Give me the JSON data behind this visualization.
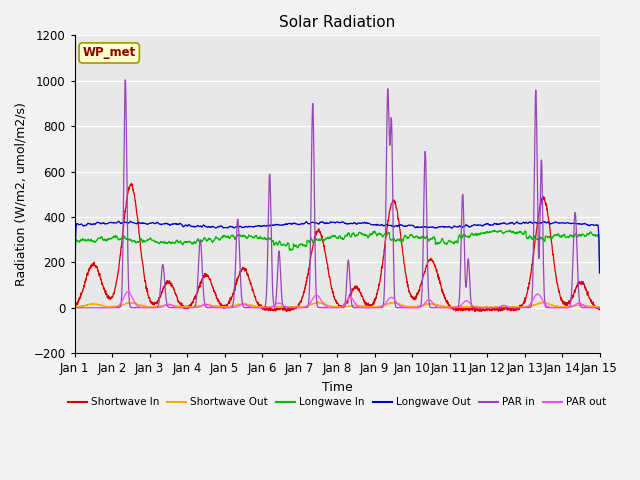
{
  "title": "Solar Radiation",
  "xlabel": "Time",
  "ylabel": "Radiation (W/m2, umol/m2/s)",
  "ylim": [
    -200,
    1200
  ],
  "yticks": [
    -200,
    0,
    200,
    400,
    600,
    800,
    1000,
    1200
  ],
  "xtick_labels": [
    "Jan 1",
    "Jan 2",
    "Jan 3",
    "Jan 4",
    "Jan 5",
    "Jan 6",
    "Jan 7",
    "Jan 8",
    "Jan 9",
    "Jan 10",
    "Jan 11",
    "Jan 12",
    "Jan 13",
    "Jan 14",
    "Jan 15"
  ],
  "colors": {
    "shortwave_in": "#dd0000",
    "shortwave_out": "#ffaa00",
    "longwave_in": "#00bb00",
    "longwave_out": "#0000cc",
    "par_in": "#9944bb",
    "par_out": "#ff44ff"
  },
  "legend_labels": [
    "Shortwave In",
    "Shortwave Out",
    "Longwave In",
    "Longwave Out",
    "PAR in",
    "PAR out"
  ],
  "annotation_text": "WP_met",
  "fig_bg": "#f2f2f2",
  "plot_bg": "#e8e8e8",
  "grid_color": "#ffffff",
  "title_fontsize": 11,
  "axis_fontsize": 9,
  "tick_fontsize": 8.5
}
